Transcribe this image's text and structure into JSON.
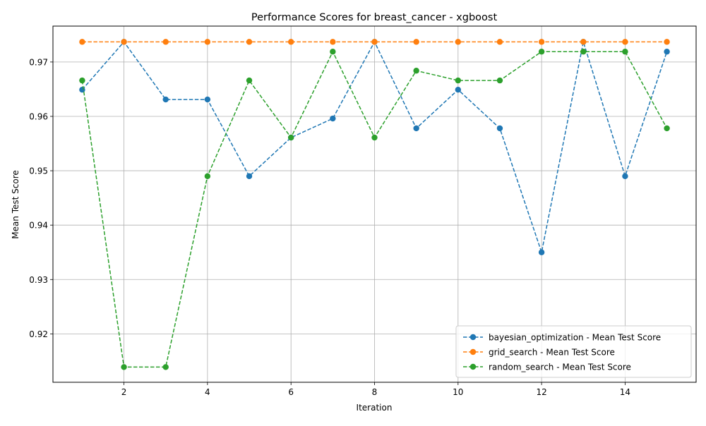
{
  "chart_data": {
    "type": "line",
    "title": "Performance Scores for breast_cancer - xgboost",
    "xlabel": "Iteration",
    "ylabel": "Mean Test Score",
    "xlim": [
      0.3,
      15.7
    ],
    "ylim": [
      0.9111,
      0.9766
    ],
    "xticks": [
      2,
      4,
      6,
      8,
      10,
      12,
      14
    ],
    "yticks": [
      0.92,
      0.93,
      0.94,
      0.95,
      0.96,
      0.97
    ],
    "grid": true,
    "legend_position": "lower-right",
    "x": [
      1,
      2,
      3,
      4,
      5,
      6,
      7,
      8,
      9,
      10,
      11,
      12,
      13,
      14,
      15
    ],
    "series": [
      {
        "name": "bayesian_optimization - Mean Test Score",
        "color": "#1f77b4",
        "values": [
          0.9649,
          0.9737,
          0.9631,
          0.9631,
          0.949,
          0.9561,
          0.9596,
          0.9737,
          0.9578,
          0.9649,
          0.9578,
          0.935,
          0.9737,
          0.949,
          0.9719
        ]
      },
      {
        "name": "grid_search - Mean Test Score",
        "color": "#ff7f0e",
        "values": [
          0.9737,
          0.9737,
          0.9737,
          0.9737,
          0.9737,
          0.9737,
          0.9737,
          0.9737,
          0.9737,
          0.9737,
          0.9737,
          0.9737,
          0.9737,
          0.9737,
          0.9737
        ]
      },
      {
        "name": "random_search - Mean Test Score",
        "color": "#2ca02c",
        "values": [
          0.9666,
          0.9139,
          0.9139,
          0.949,
          0.9666,
          0.9561,
          0.9719,
          0.9561,
          0.9684,
          0.9666,
          0.9666,
          0.9719,
          0.9719,
          0.9719,
          0.9578
        ]
      }
    ]
  }
}
